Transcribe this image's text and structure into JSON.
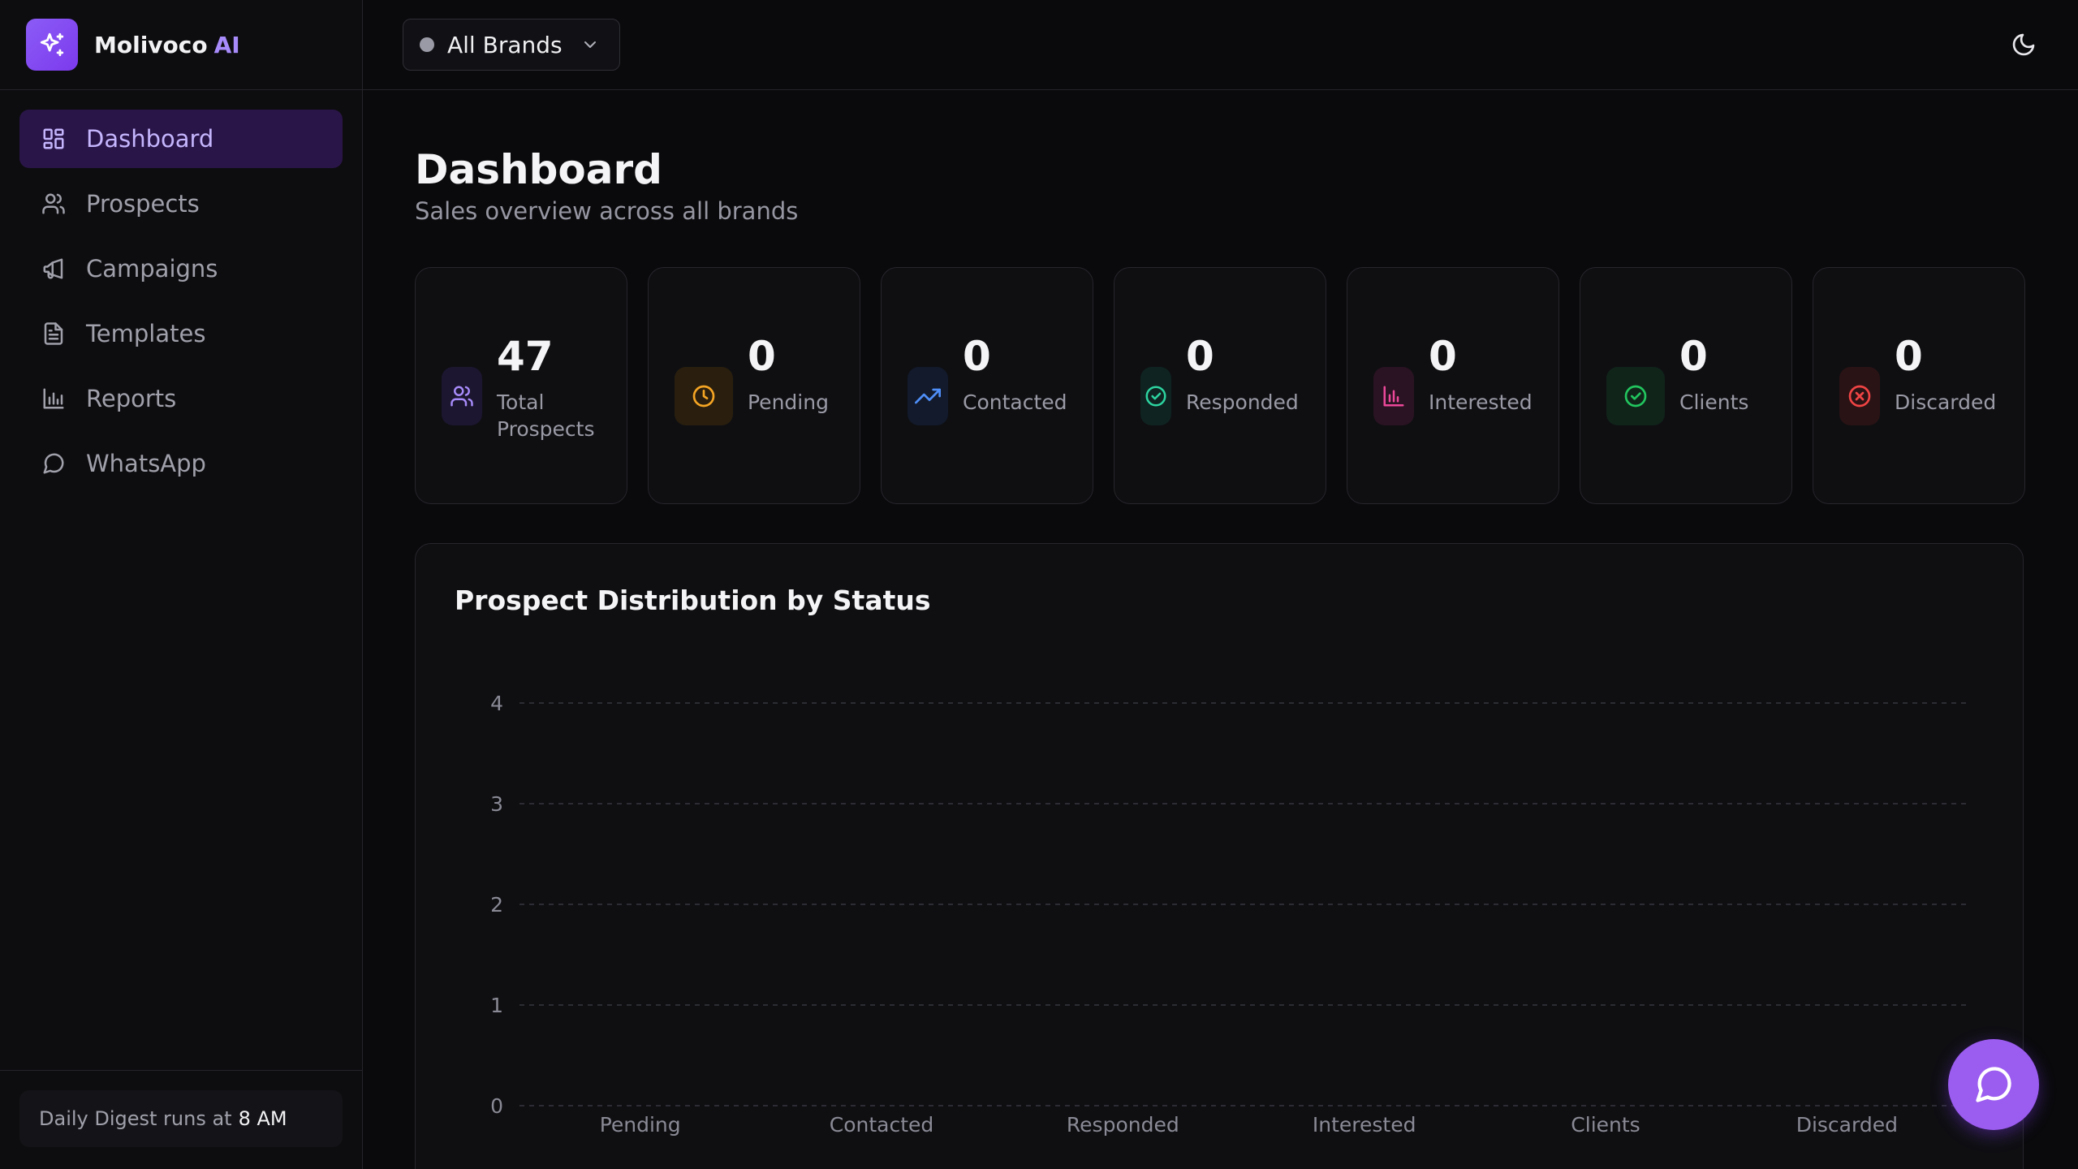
{
  "app": {
    "name": "Molivoco",
    "name_accent": "AI"
  },
  "sidebar": {
    "items": [
      {
        "label": "Dashboard",
        "icon": "dashboard-icon",
        "active": true
      },
      {
        "label": "Prospects",
        "icon": "users-icon",
        "active": false
      },
      {
        "label": "Campaigns",
        "icon": "megaphone-icon",
        "active": false
      },
      {
        "label": "Templates",
        "icon": "document-icon",
        "active": false
      },
      {
        "label": "Reports",
        "icon": "bar-chart-icon",
        "active": false
      },
      {
        "label": "WhatsApp",
        "icon": "chat-bubble-icon",
        "active": false
      }
    ],
    "digest": {
      "prefix": "Daily Digest runs at",
      "time": "8 AM"
    }
  },
  "topbar": {
    "brand_select": "All Brands",
    "theme_icon": "moon-icon"
  },
  "page": {
    "title": "Dashboard",
    "subtitle": "Sales overview across all brands"
  },
  "stats": [
    {
      "value": "47",
      "label": "Total Prospects",
      "icon": "users-icon",
      "color": "#a78bfa",
      "bg": "#1c1630"
    },
    {
      "value": "0",
      "label": "Pending",
      "icon": "clock-icon",
      "color": "#f5a524",
      "bg": "#2a1f0e"
    },
    {
      "value": "0",
      "label": "Contacted",
      "icon": "trending-up-icon",
      "color": "#4f8ef7",
      "bg": "#121a2b"
    },
    {
      "value": "0",
      "label": "Responded",
      "icon": "check-circle-icon",
      "color": "#2dd4a0",
      "bg": "#0f2420"
    },
    {
      "value": "0",
      "label": "Interested",
      "icon": "bar-chart-icon",
      "color": "#ec4899",
      "bg": "#2a1322"
    },
    {
      "value": "0",
      "label": "Clients",
      "icon": "check-circle-icon",
      "color": "#22c55e",
      "bg": "#10241a"
    },
    {
      "value": "0",
      "label": "Discarded",
      "icon": "x-circle-icon",
      "color": "#ef4444",
      "bg": "#2a1315"
    }
  ],
  "chart_data": {
    "type": "bar",
    "title": "Prospect Distribution by Status",
    "categories": [
      "Pending",
      "Contacted",
      "Responded",
      "Interested",
      "Clients",
      "Discarded"
    ],
    "values": [
      0,
      0,
      0,
      0,
      0,
      0
    ],
    "ylim": [
      0,
      4
    ],
    "yticks": [
      0,
      1,
      2,
      3,
      4
    ],
    "grid": true
  },
  "fab": {
    "icon": "chat-bubble-icon"
  }
}
